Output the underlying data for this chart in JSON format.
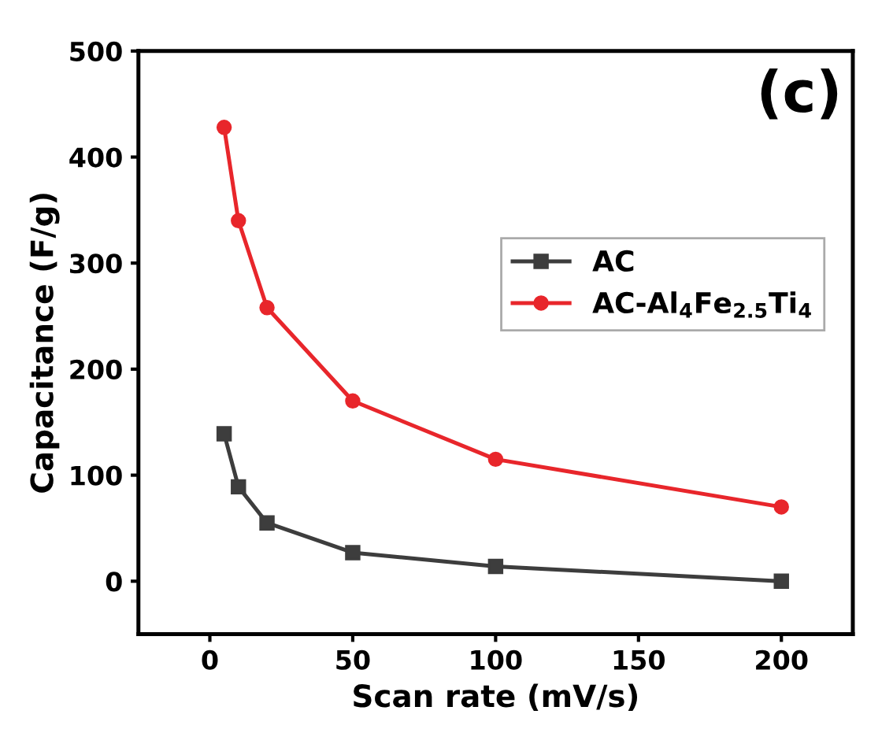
{
  "chart_data": {
    "type": "line",
    "xlabel": "Scan rate (mV/s)",
    "ylabel": "Capacitance (F/g)",
    "annotations": [
      "(c)"
    ],
    "xlim": [
      -25,
      225
    ],
    "xticks": [
      0,
      50,
      100,
      150,
      200
    ],
    "ylim": [
      -50,
      500
    ],
    "yticks": [
      0,
      100,
      200,
      300,
      400,
      500
    ],
    "grid": false,
    "legend": "right",
    "x": [
      5,
      10,
      20,
      50,
      100,
      200
    ],
    "series": [
      {
        "name": "AC",
        "color": "#3d3d3d",
        "marker": "square",
        "values": [
          139,
          89,
          55,
          27,
          14,
          0
        ]
      },
      {
        "name": "AC-Al$_{4}$Fe$_{2.5}$Ti$_{4}$",
        "color": "#e8262b",
        "marker": "circle",
        "values": [
          428,
          340,
          258,
          170,
          115,
          70
        ]
      }
    ]
  }
}
